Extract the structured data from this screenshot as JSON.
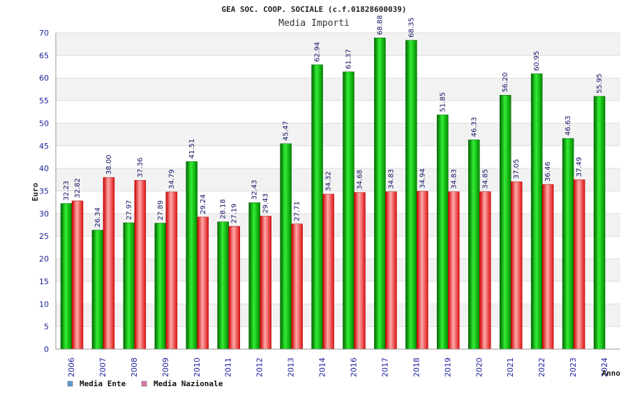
{
  "chart_data": {
    "type": "bar",
    "title": "GEA SOC. COOP. SOCIALE (c.f.01828600039)",
    "subtitle": "Media Importi",
    "xlabel": "Anno",
    "ylabel": "Euro",
    "ylim": [
      0,
      70
    ],
    "yticks": [
      0,
      5,
      10,
      15,
      20,
      25,
      30,
      35,
      40,
      45,
      50,
      55,
      60,
      65,
      70
    ],
    "grid": true,
    "legend_position": "bottom-left",
    "categories": [
      "2006",
      "2007",
      "2008",
      "2009",
      "2010",
      "2011",
      "2012",
      "2013",
      "2014",
      "2016",
      "2017",
      "2018",
      "2019",
      "2020",
      "2021",
      "2022",
      "2023",
      "2024"
    ],
    "series": [
      {
        "name": "Media Ente",
        "color": "#00aa00",
        "legend_color": "#5b9bd5",
        "values": [
          32.23,
          26.34,
          27.97,
          27.89,
          41.51,
          28.18,
          32.43,
          45.47,
          62.94,
          61.37,
          68.88,
          68.35,
          51.85,
          46.33,
          56.2,
          60.95,
          46.63,
          55.95
        ],
        "labels": [
          "32.23",
          "26.34",
          "27.97",
          "27.89",
          "41.51",
          "28.18",
          "32.43",
          "45.47",
          "62.94",
          "61.37",
          "68.88",
          "68.35",
          "51.85",
          "46.33",
          "56.20",
          "60.95",
          "46.63",
          "55.95"
        ]
      },
      {
        "name": "Media Nazionale",
        "color": "#e02020",
        "legend_color": "#d97bb0",
        "values": [
          32.82,
          38.0,
          37.36,
          34.79,
          29.24,
          27.19,
          29.43,
          27.71,
          34.32,
          34.68,
          34.83,
          34.94,
          34.83,
          34.85,
          37.05,
          36.46,
          37.49,
          null
        ],
        "labels": [
          "32.82",
          "38.00",
          "37.36",
          "34.79",
          "29.24",
          "27.19",
          "29.43",
          "27.71",
          "34.32",
          "34.68",
          "34.83",
          "34.94",
          "34.83",
          "34.85",
          "37.05",
          "36.46",
          "37.49",
          null
        ]
      }
    ]
  }
}
